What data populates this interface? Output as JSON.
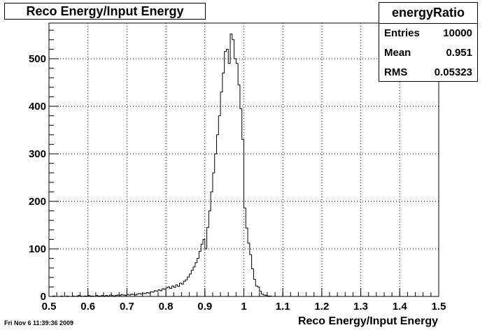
{
  "chart_data": {
    "type": "histogram",
    "title": "Reco Energy/Input Energy",
    "xlabel": "Reco Energy/Input Energy",
    "ylabel": "",
    "xlim": [
      0.5,
      1.5
    ],
    "ylim": [
      0,
      575
    ],
    "x_ticks": [
      "0.5",
      "0.6",
      "0.7",
      "0.8",
      "0.9",
      "1",
      "1.1",
      "1.2",
      "1.3",
      "1.4",
      "1.5"
    ],
    "y_ticks": [
      "0",
      "100",
      "200",
      "300",
      "400",
      "500"
    ],
    "grid": true,
    "bin_width": 0.005,
    "x": [
      0.5025,
      0.5075,
      0.5125,
      0.5175,
      0.5225,
      0.5275,
      0.5325,
      0.5375,
      0.5425,
      0.5475,
      0.5525,
      0.5575,
      0.5625,
      0.5675,
      0.5725,
      0.5775,
      0.5825,
      0.5875,
      0.5925,
      0.5975,
      0.6025,
      0.6075,
      0.6125,
      0.6175,
      0.6225,
      0.6275,
      0.6325,
      0.6375,
      0.6425,
      0.6475,
      0.6525,
      0.6575,
      0.6625,
      0.6675,
      0.6725,
      0.6775,
      0.6825,
      0.6875,
      0.6925,
      0.6975,
      0.7025,
      0.7075,
      0.7125,
      0.7175,
      0.7225,
      0.7275,
      0.7325,
      0.7375,
      0.7425,
      0.7475,
      0.7525,
      0.7575,
      0.7625,
      0.7675,
      0.7725,
      0.7775,
      0.7825,
      0.7875,
      0.7925,
      0.7975,
      0.8025,
      0.8075,
      0.8125,
      0.8175,
      0.8225,
      0.8275,
      0.8325,
      0.8375,
      0.8425,
      0.8475,
      0.8525,
      0.8575,
      0.8625,
      0.8675,
      0.8725,
      0.8775,
      0.8825,
      0.8875,
      0.8925,
      0.8975,
      0.9025,
      0.9075,
      0.9125,
      0.9175,
      0.9225,
      0.9275,
      0.9325,
      0.9375,
      0.9425,
      0.9475,
      0.9525,
      0.9575,
      0.9625,
      0.9675,
      0.9725,
      0.9775,
      0.9825,
      0.9875,
      0.9925,
      0.9975,
      1.0025,
      1.0075,
      1.0125,
      1.0175,
      1.0225,
      1.0275,
      1.0325,
      1.0375,
      1.0425,
      1.0475,
      1.0525,
      1.0575,
      1.0625,
      1.0675,
      1.0725,
      1.0775,
      1.0825,
      1.0875,
      1.0925,
      1.0975
    ],
    "values": [
      0,
      0,
      1,
      0,
      0,
      0,
      1,
      0,
      0,
      1,
      0,
      0,
      1,
      0,
      1,
      2,
      1,
      0,
      1,
      1,
      2,
      1,
      1,
      0,
      2,
      1,
      1,
      2,
      1,
      2,
      1,
      3,
      2,
      1,
      2,
      3,
      2,
      4,
      3,
      2,
      4,
      3,
      5,
      4,
      3,
      5,
      6,
      5,
      7,
      6,
      8,
      7,
      10,
      9,
      12,
      11,
      14,
      12,
      16,
      15,
      18,
      20,
      17,
      22,
      19,
      24,
      21,
      28,
      26,
      32,
      35,
      41,
      47,
      55,
      62,
      71,
      80,
      95,
      110,
      120,
      100,
      145,
      180,
      220,
      260,
      300,
      340,
      380,
      430,
      470,
      515,
      520,
      490,
      552,
      540,
      500,
      490,
      445,
      395,
      330,
      186,
      144,
      112,
      88,
      58,
      36,
      22,
      20,
      11,
      5,
      3,
      2,
      1,
      1,
      0,
      0,
      0,
      0,
      0,
      0
    ],
    "stats": {
      "name": "energyRatio",
      "entries_label": "Entries",
      "entries": "10000",
      "mean_label": "Mean",
      "mean": "0.951",
      "rms_label": "RMS",
      "rms": "0.05323"
    }
  },
  "footer": {
    "timestamp": "Fri Nov  6 11:39:36 2009"
  }
}
